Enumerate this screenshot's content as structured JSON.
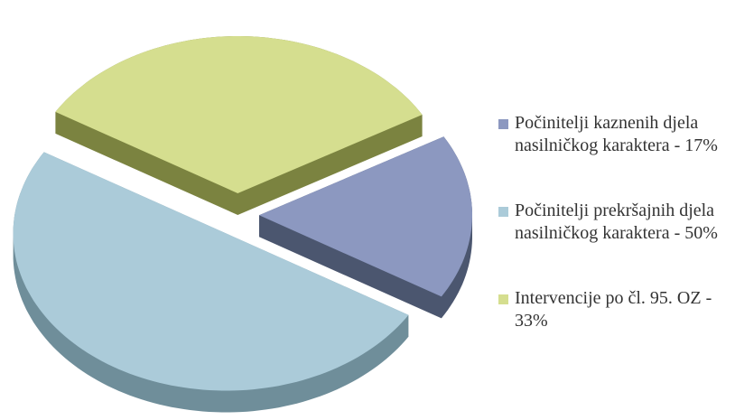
{
  "chart_data": {
    "type": "pie",
    "categories": [
      "Počinitelji kaznenih djela nasilničkog karaktera - 17%",
      "Počinitelji prekršajnih djela nasilničkog karaktera - 50%",
      "Intervencije po čl. 95. OZ - 33%"
    ],
    "values": [
      17,
      50,
      33
    ],
    "colors": [
      "#8c98c0",
      "#abcbd9",
      "#d5de8f"
    ],
    "side_colors": [
      "#4b566f",
      "#6f8e9a",
      "#7b8340"
    ],
    "legend": "right"
  }
}
